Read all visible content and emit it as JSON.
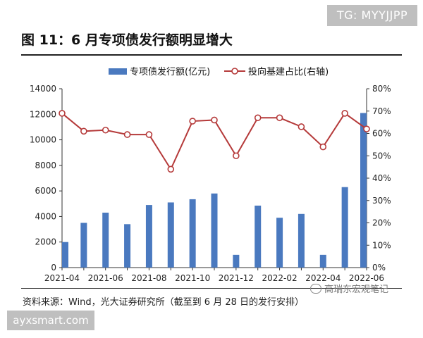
{
  "watermark_top": "TG: MYYJJPP",
  "watermark_bottom": "ayxsmart.com",
  "watermark_right": "高瑞东宏观笔记",
  "title": "图 11：6 月专项债发行额明显增大",
  "source": "资料来源：Wind，光大证券研究所（截至到 6 月 28 日的发行安排）",
  "colors": {
    "bar": "#4a79bf",
    "line": "#b53a3a",
    "axis": "#333333"
  },
  "chart_data": {
    "type": "bar+line",
    "categories": [
      "2021-04",
      "2021-05",
      "2021-06",
      "2021-07",
      "2021-08",
      "2021-09",
      "2021-10",
      "2021-11",
      "2021-12",
      "2022-01",
      "2022-02",
      "2022-03",
      "2022-04",
      "2022-05",
      "2022-06"
    ],
    "xtick_labels": [
      "2021-04",
      "2021-06",
      "2021-08",
      "2021-10",
      "2021-12",
      "2022-02",
      "2022-04",
      "2022-06"
    ],
    "series": [
      {
        "name": "专项债发行额(亿元)",
        "type": "bar",
        "axis": "left",
        "values": [
          2000,
          3500,
          4300,
          3400,
          4900,
          5100,
          5350,
          5800,
          1000,
          4850,
          3900,
          4200,
          1000,
          6300,
          12100
        ]
      },
      {
        "name": "投向基建占比(右轴)",
        "type": "line",
        "axis": "right",
        "values": [
          0.69,
          0.61,
          0.615,
          0.595,
          0.595,
          0.44,
          0.655,
          0.66,
          0.5,
          0.67,
          0.67,
          0.63,
          0.54,
          0.69,
          0.62
        ]
      }
    ],
    "y_left": {
      "min": 0,
      "max": 14000,
      "ticks": [
        "0",
        "2000",
        "4000",
        "6000",
        "8000",
        "10000",
        "12000",
        "14000"
      ]
    },
    "y_right": {
      "min": 0,
      "max": 0.8,
      "ticks": [
        "0%",
        "10%",
        "20%",
        "30%",
        "40%",
        "50%",
        "60%",
        "70%",
        "80%"
      ]
    },
    "legend_position": "top-center",
    "grid": false
  }
}
